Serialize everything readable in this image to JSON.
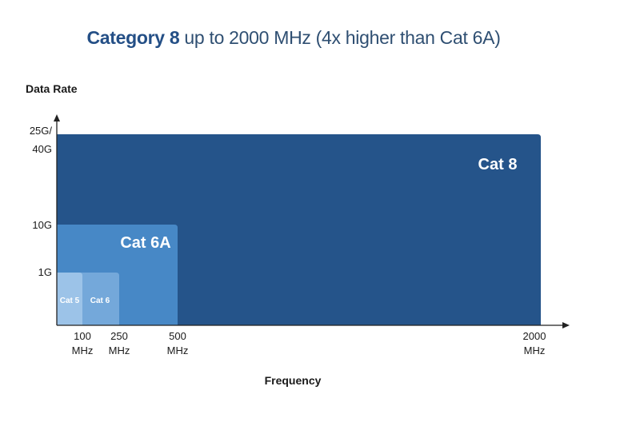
{
  "title": {
    "bold": "Category 8",
    "rest": " up to 2000 MHz (4x higher than Cat 6A)"
  },
  "colors": {
    "cat8": "#25548a",
    "cat6a": "#4788c6",
    "cat6": "#74a8da",
    "cat5": "#9cc3e8",
    "axis": "#222222"
  },
  "chart_data": {
    "type": "area",
    "title": "Category 8 up to 2000 MHz (4x higher than Cat 6A)",
    "xlabel": "Frequency",
    "ylabel": "Data Rate",
    "x_ticks": [
      {
        "line1": "100",
        "line2": "MHz"
      },
      {
        "line1": "250",
        "line2": "MHz"
      },
      {
        "line1": "500",
        "line2": "MHz"
      },
      {
        "line1": "2000",
        "line2": "MHz"
      }
    ],
    "y_ticks": [
      {
        "line1": "1G",
        "line2": ""
      },
      {
        "line1": "10G",
        "line2": ""
      },
      {
        "line1": "25G/",
        "line2": "40G"
      }
    ],
    "series": [
      {
        "name": "Cat 8",
        "max_frequency_mhz": 2000,
        "data_rate": "25G/40G",
        "x_tick_index": 3,
        "y_tick_index": 2,
        "color": "#25548a"
      },
      {
        "name": "Cat 6A",
        "max_frequency_mhz": 500,
        "data_rate": "10G",
        "x_tick_index": 2,
        "y_tick_index": 1,
        "color": "#4788c6"
      },
      {
        "name": "Cat 6",
        "max_frequency_mhz": 250,
        "data_rate": "1G",
        "x_tick_index": 1,
        "y_tick_index": 0,
        "color": "#74a8da"
      },
      {
        "name": "Cat 5",
        "max_frequency_mhz": 100,
        "data_rate": "1G",
        "x_tick_index": 0,
        "y_tick_index": 0,
        "color": "#9cc3e8"
      }
    ]
  }
}
